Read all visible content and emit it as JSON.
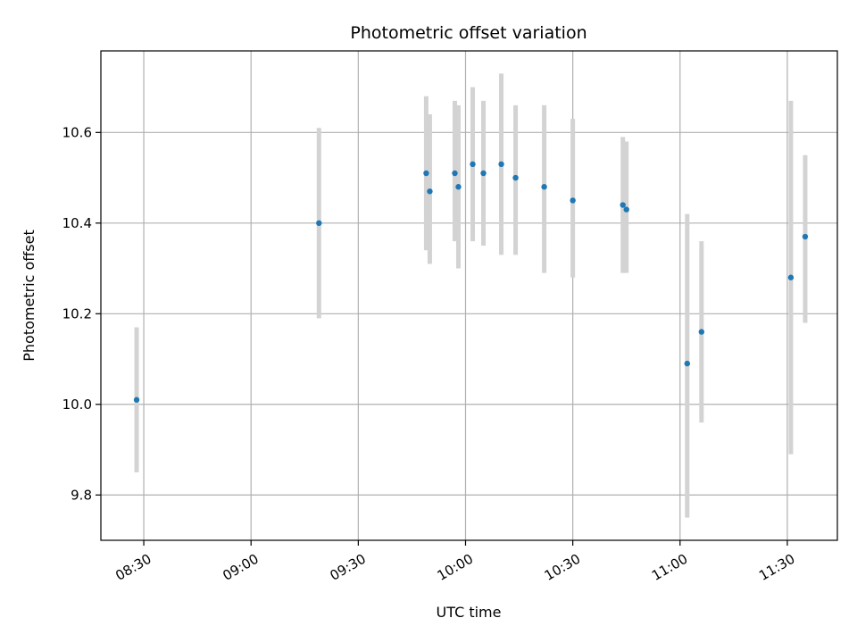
{
  "chart_data": {
    "type": "scatter",
    "title": "Photometric offset variation",
    "xlabel": "UTC time",
    "ylabel": "Photometric offset",
    "xlim": [
      "08:18",
      "11:44"
    ],
    "ylim": [
      9.7,
      10.78
    ],
    "grid": true,
    "x_ticks": [
      "08:30",
      "09:00",
      "09:30",
      "10:00",
      "10:30",
      "11:00",
      "11:30"
    ],
    "y_ticks": [
      9.8,
      10.0,
      10.2,
      10.4,
      10.6
    ],
    "y_tick_labels": [
      "9.8",
      "10.0",
      "10.2",
      "10.4",
      "10.6"
    ],
    "point_color": "#1f77b4",
    "errorbar_color": "#d3d3d3",
    "points": [
      {
        "x": "08:28",
        "y": 10.01,
        "yerr_low": 9.85,
        "yerr_high": 10.17
      },
      {
        "x": "09:19",
        "y": 10.4,
        "yerr_low": 10.19,
        "yerr_high": 10.61
      },
      {
        "x": "09:49",
        "y": 10.51,
        "yerr_low": 10.34,
        "yerr_high": 10.68
      },
      {
        "x": "09:50",
        "y": 10.47,
        "yerr_low": 10.31,
        "yerr_high": 10.64
      },
      {
        "x": "09:57",
        "y": 10.51,
        "yerr_low": 10.36,
        "yerr_high": 10.67
      },
      {
        "x": "09:58",
        "y": 10.48,
        "yerr_low": 10.3,
        "yerr_high": 10.66
      },
      {
        "x": "10:02",
        "y": 10.53,
        "yerr_low": 10.36,
        "yerr_high": 10.7
      },
      {
        "x": "10:05",
        "y": 10.51,
        "yerr_low": 10.35,
        "yerr_high": 10.67
      },
      {
        "x": "10:10",
        "y": 10.53,
        "yerr_low": 10.33,
        "yerr_high": 10.73
      },
      {
        "x": "10:14",
        "y": 10.5,
        "yerr_low": 10.33,
        "yerr_high": 10.66
      },
      {
        "x": "10:22",
        "y": 10.48,
        "yerr_low": 10.29,
        "yerr_high": 10.66
      },
      {
        "x": "10:30",
        "y": 10.45,
        "yerr_low": 10.28,
        "yerr_high": 10.63
      },
      {
        "x": "10:44",
        "y": 10.44,
        "yerr_low": 10.29,
        "yerr_high": 10.59
      },
      {
        "x": "10:45",
        "y": 10.43,
        "yerr_low": 10.29,
        "yerr_high": 10.58
      },
      {
        "x": "11:02",
        "y": 10.09,
        "yerr_low": 9.75,
        "yerr_high": 10.42
      },
      {
        "x": "11:06",
        "y": 10.16,
        "yerr_low": 9.96,
        "yerr_high": 10.36
      },
      {
        "x": "11:31",
        "y": 10.28,
        "yerr_low": 9.89,
        "yerr_high": 10.67
      },
      {
        "x": "11:35",
        "y": 10.37,
        "yerr_low": 10.18,
        "yerr_high": 10.55
      }
    ]
  }
}
